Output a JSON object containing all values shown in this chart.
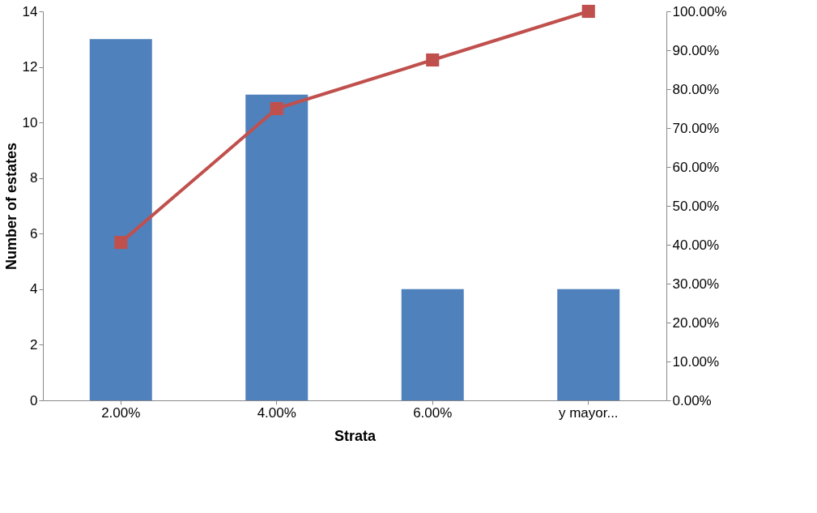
{
  "chart_data": {
    "type": "bar",
    "xlabel": "Strata",
    "ylabel": "Number of estates",
    "categories": [
      "2.00%",
      "4.00%",
      "6.00%",
      "y mayor..."
    ],
    "series": [
      {
        "color": "#4f81bd",
        "values": [
          13,
          11,
          4,
          4
        ]
      },
      {
        "type": "line",
        "axis": "y2",
        "color": "#c0504d",
        "values": [
          40.6,
          75,
          87.5,
          100
        ],
        "marker": "square",
        "line_style": "solid"
      }
    ],
    "ylim": [
      0,
      14
    ],
    "yticks": [
      0,
      2,
      4,
      6,
      8,
      10,
      12,
      14
    ],
    "y2lim": [
      0,
      100
    ],
    "y2ticks": [
      {
        "value": 0,
        "label": "0.00%"
      },
      {
        "value": 10,
        "label": "10.00%"
      },
      {
        "value": 20,
        "label": "20.00%"
      },
      {
        "value": 30,
        "label": "30.00%"
      },
      {
        "value": 40,
        "label": "40.00%"
      },
      {
        "value": 50,
        "label": "50.00%"
      },
      {
        "value": 60,
        "label": "60.00%"
      },
      {
        "value": 70,
        "label": "70.00%"
      },
      {
        "value": 80,
        "label": "80.00%"
      },
      {
        "value": 90,
        "label": "90.00%"
      },
      {
        "value": 100,
        "label": "100.00%"
      }
    ],
    "grid": false
  }
}
